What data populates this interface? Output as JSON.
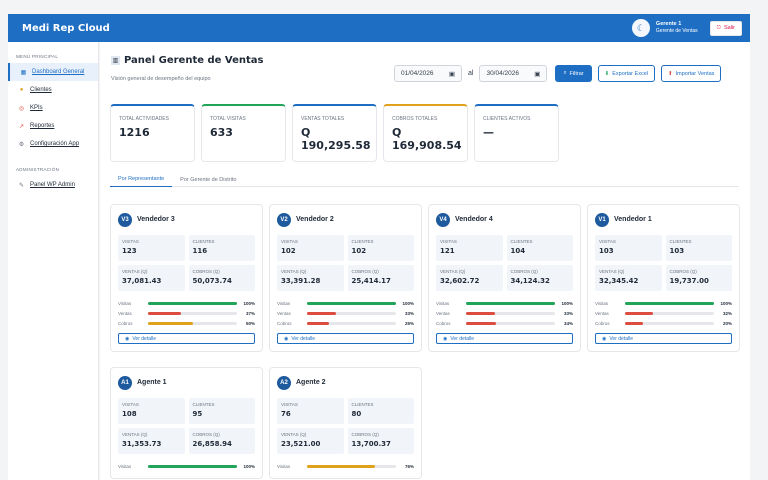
{
  "app": {
    "brand": "Medi Rep Cloud",
    "user_name": "Gerente 1",
    "user_role": "Gerente de Ventas",
    "exit_label": "Salir"
  },
  "sidebar": {
    "section_main": "MENÚ PRINCIPAL",
    "section_admin": "ADMINISTRACIÓN",
    "items": [
      {
        "label": "Dashboard General",
        "icon": "chart-icon",
        "active": true
      },
      {
        "label": "Clientes",
        "icon": "clients-icon"
      },
      {
        "label": "KPIs",
        "icon": "target-icon"
      },
      {
        "label": "Reportes",
        "icon": "report-icon"
      },
      {
        "label": "Configuración App",
        "icon": "gear-icon"
      }
    ],
    "admin_items": [
      {
        "label": "Panel WP Admin",
        "icon": "wrench-icon"
      }
    ]
  },
  "header": {
    "title": "Panel Gerente de Ventas",
    "subtitle": "Visión general de desempeño del equipo",
    "date_from": "01/04/2026",
    "date_sep": "al",
    "date_to": "30/04/2026",
    "filter_label": "Filtrar",
    "export_label": "Exportar Excel",
    "import_label": "Importar Ventas"
  },
  "stats": [
    {
      "label": "TOTAL ACTIVIDADES",
      "value": "1216",
      "color": "#1e6fc4"
    },
    {
      "label": "TOTAL VISITAS",
      "value": "633",
      "color": "#22a559"
    },
    {
      "label": "VENTAS TOTALES",
      "value": "Q 190,295.58",
      "color": "#1e6fc4"
    },
    {
      "label": "COBROS TOTALES",
      "value": "Q 169,908.54",
      "color": "#e0a21b"
    },
    {
      "label": "CLIENTES ACTIVOS",
      "value": "—",
      "color": "#1e6fc4"
    }
  ],
  "tabs": [
    "Por Representante",
    "Por Gerente de Distrito"
  ],
  "labels": {
    "visitas": "VISITAS",
    "clientes": "CLIENTES",
    "ventas": "VENTAS (Q)",
    "cobros": "COBROS (Q)",
    "bar_visitas": "Visitas",
    "bar_ventas": "Ventas",
    "bar_cobros": "Cobros",
    "detail": "Ver detalle"
  },
  "colors": {
    "visitas": "#22a559",
    "ventas": "#dc4c3f",
    "cobros_low": "#e0a21b"
  },
  "reps": [
    {
      "badge": "V3",
      "name": "Vendedor 3",
      "visitas": "123",
      "clientes": "116",
      "ventas": "37,081.43",
      "cobros": "50,073.74",
      "p_visitas": 100,
      "p_ventas": 37,
      "p_cobros": 50,
      "c_visitas": "#22a559",
      "c_ventas": "#dc4c3f",
      "c_cobros": "#e0a21b"
    },
    {
      "badge": "V2",
      "name": "Vendedor 2",
      "visitas": "102",
      "clientes": "102",
      "ventas": "33,391.28",
      "cobros": "25,414.17",
      "p_visitas": 100,
      "p_ventas": 33,
      "p_cobros": 25,
      "c_visitas": "#22a559",
      "c_ventas": "#dc4c3f",
      "c_cobros": "#dc4c3f"
    },
    {
      "badge": "V4",
      "name": "Vendedor 4",
      "visitas": "121",
      "clientes": "104",
      "ventas": "32,602.72",
      "cobros": "34,124.32",
      "p_visitas": 100,
      "p_ventas": 33,
      "p_cobros": 34,
      "c_visitas": "#22a559",
      "c_ventas": "#dc4c3f",
      "c_cobros": "#dc4c3f"
    },
    {
      "badge": "V1",
      "name": "Vendedor 1",
      "visitas": "103",
      "clientes": "103",
      "ventas": "32,345.42",
      "cobros": "19,737.00",
      "p_visitas": 100,
      "p_ventas": 32,
      "p_cobros": 20,
      "c_visitas": "#22a559",
      "c_ventas": "#dc4c3f",
      "c_cobros": "#dc4c3f"
    },
    {
      "badge": "A1",
      "name": "Agente 1",
      "visitas": "108",
      "clientes": "95",
      "ventas": "31,353.73",
      "cobros": "26,858.94",
      "p_visitas": 100,
      "p_ventas": null,
      "p_cobros": null,
      "c_visitas": "#22a559",
      "c_ventas": "#dc4c3f",
      "c_cobros": "#dc4c3f"
    },
    {
      "badge": "A2",
      "name": "Agente 2",
      "visitas": "76",
      "clientes": "80",
      "ventas": "23,521.00",
      "cobros": "13,700.37",
      "p_visitas": 76,
      "p_ventas": null,
      "p_cobros": null,
      "c_visitas": "#e0a21b",
      "c_ventas": "#dc4c3f",
      "c_cobros": "#dc4c3f"
    }
  ]
}
